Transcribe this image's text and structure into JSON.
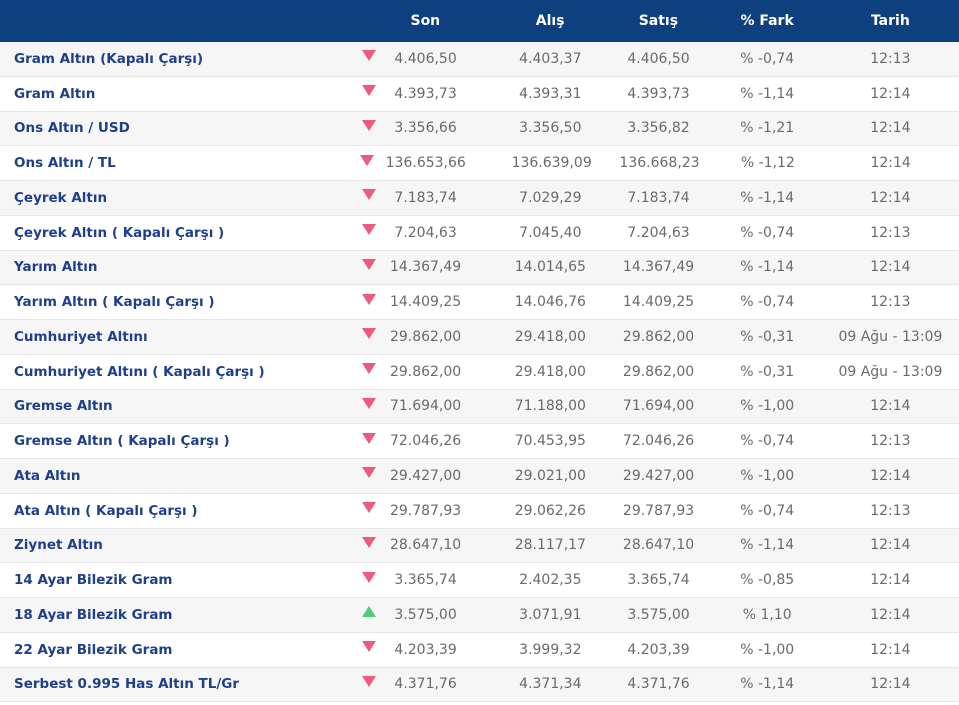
{
  "header": {
    "son": "Son",
    "alis": "Alış",
    "satis": "Satış",
    "fark": "% Fark",
    "tarih": "Tarih"
  },
  "colors": {
    "header_bg": "#0e3f7f",
    "down": "#ee5a7d",
    "up": "#54c979",
    "name": "#1f3f8a"
  },
  "rows": [
    {
      "name": "Gram Altın (Kapalı Çarşı)",
      "trend": "down",
      "son": "4.406,50",
      "alis": "4.403,37",
      "satis": "4.406,50",
      "fark": "% -0,74",
      "tarih": "12:13"
    },
    {
      "name": "Gram Altın",
      "trend": "down",
      "son": "4.393,73",
      "alis": "4.393,31",
      "satis": "4.393,73",
      "fark": "% -1,14",
      "tarih": "12:14"
    },
    {
      "name": "Ons Altın / USD",
      "trend": "down",
      "son": "3.356,66",
      "alis": "3.356,50",
      "satis": "3.356,82",
      "fark": "% -1,21",
      "tarih": "12:14"
    },
    {
      "name": "Ons Altın / TL",
      "trend": "down",
      "son": "136.653,66",
      "alis": "136.639,09",
      "satis": "136.668,23",
      "fark": "% -1,12",
      "tarih": "12:14"
    },
    {
      "name": "Çeyrek Altın",
      "trend": "down",
      "son": "7.183,74",
      "alis": "7.029,29",
      "satis": "7.183,74",
      "fark": "% -1,14",
      "tarih": "12:14"
    },
    {
      "name": "Çeyrek Altın ( Kapalı Çarşı )",
      "trend": "down",
      "son": "7.204,63",
      "alis": "7.045,40",
      "satis": "7.204,63",
      "fark": "% -0,74",
      "tarih": "12:13"
    },
    {
      "name": "Yarım Altın",
      "trend": "down",
      "son": "14.367,49",
      "alis": "14.014,65",
      "satis": "14.367,49",
      "fark": "% -1,14",
      "tarih": "12:14"
    },
    {
      "name": "Yarım Altın ( Kapalı Çarşı )",
      "trend": "down",
      "son": "14.409,25",
      "alis": "14.046,76",
      "satis": "14.409,25",
      "fark": "% -0,74",
      "tarih": "12:13"
    },
    {
      "name": "Cumhuriyet Altını",
      "trend": "down",
      "son": "29.862,00",
      "alis": "29.418,00",
      "satis": "29.862,00",
      "fark": "% -0,31",
      "tarih": "09 Ağu - 13:09"
    },
    {
      "name": "Cumhuriyet Altını ( Kapalı Çarşı )",
      "trend": "down",
      "son": "29.862,00",
      "alis": "29.418,00",
      "satis": "29.862,00",
      "fark": "% -0,31",
      "tarih": "09 Ağu - 13:09"
    },
    {
      "name": "Gremse Altın",
      "trend": "down",
      "son": "71.694,00",
      "alis": "71.188,00",
      "satis": "71.694,00",
      "fark": "% -1,00",
      "tarih": "12:14"
    },
    {
      "name": "Gremse Altın ( Kapalı Çarşı )",
      "trend": "down",
      "son": "72.046,26",
      "alis": "70.453,95",
      "satis": "72.046,26",
      "fark": "% -0,74",
      "tarih": "12:13"
    },
    {
      "name": "Ata Altın",
      "trend": "down",
      "son": "29.427,00",
      "alis": "29.021,00",
      "satis": "29.427,00",
      "fark": "% -1,00",
      "tarih": "12:14"
    },
    {
      "name": "Ata Altın ( Kapalı Çarşı )",
      "trend": "down",
      "son": "29.787,93",
      "alis": "29.062,26",
      "satis": "29.787,93",
      "fark": "% -0,74",
      "tarih": "12:13"
    },
    {
      "name": "Ziynet Altın",
      "trend": "down",
      "son": "28.647,10",
      "alis": "28.117,17",
      "satis": "28.647,10",
      "fark": "% -1,14",
      "tarih": "12:14"
    },
    {
      "name": "14 Ayar Bilezik Gram",
      "trend": "down",
      "son": "3.365,74",
      "alis": "2.402,35",
      "satis": "3.365,74",
      "fark": "% -0,85",
      "tarih": "12:14"
    },
    {
      "name": "18 Ayar Bilezik Gram",
      "trend": "up",
      "son": "3.575,00",
      "alis": "3.071,91",
      "satis": "3.575,00",
      "fark": "% 1,10",
      "tarih": "12:14"
    },
    {
      "name": "22 Ayar Bilezik Gram",
      "trend": "down",
      "son": "4.203,39",
      "alis": "3.999,32",
      "satis": "4.203,39",
      "fark": "% -1,00",
      "tarih": "12:14"
    },
    {
      "name": "Serbest 0.995 Has Altın TL/Gr",
      "trend": "down",
      "son": "4.371,76",
      "alis": "4.371,34",
      "satis": "4.371,76",
      "fark": "% -1,14",
      "tarih": "12:14"
    }
  ]
}
